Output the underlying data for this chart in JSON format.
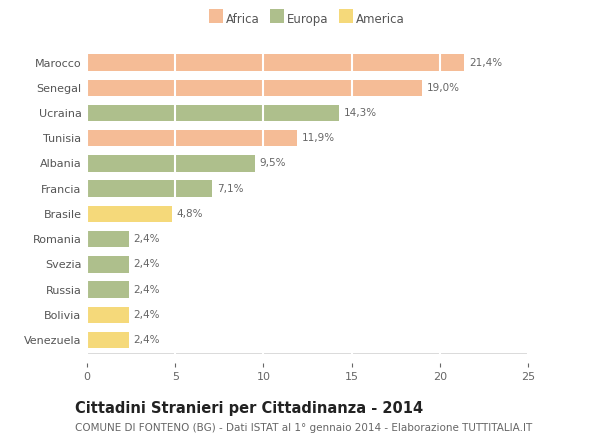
{
  "categories": [
    "Marocco",
    "Senegal",
    "Ucraina",
    "Tunisia",
    "Albania",
    "Francia",
    "Brasile",
    "Romania",
    "Svezia",
    "Russia",
    "Bolivia",
    "Venezuela"
  ],
  "values": [
    21.4,
    19.0,
    14.3,
    11.9,
    9.5,
    7.1,
    4.8,
    2.4,
    2.4,
    2.4,
    2.4,
    2.4
  ],
  "labels": [
    "21,4%",
    "19,0%",
    "14,3%",
    "11,9%",
    "9,5%",
    "7,1%",
    "4,8%",
    "2,4%",
    "2,4%",
    "2,4%",
    "2,4%",
    "2,4%"
  ],
  "colors": [
    "#F5BC96",
    "#F5BC96",
    "#AEBF8C",
    "#F5BC96",
    "#AEBF8C",
    "#AEBF8C",
    "#F5D97A",
    "#AEBF8C",
    "#AEBF8C",
    "#AEBF8C",
    "#F5D97A",
    "#F5D97A"
  ],
  "legend_labels": [
    "Africa",
    "Europa",
    "America"
  ],
  "legend_colors": [
    "#F5BC96",
    "#AEBF8C",
    "#F5D97A"
  ],
  "title": "Cittadini Stranieri per Cittadinanza - 2014",
  "subtitle": "COMUNE DI FONTENO (BG) - Dati ISTAT al 1° gennaio 2014 - Elaborazione TUTTITALIA.IT",
  "xlim": [
    0,
    25
  ],
  "xticks": [
    0,
    5,
    10,
    15,
    20,
    25
  ],
  "background_color": "#ffffff",
  "plot_bg_color": "#ffffff",
  "grid_color": "#ffffff",
  "bar_height": 0.65,
  "title_fontsize": 10.5,
  "subtitle_fontsize": 7.5,
  "label_fontsize": 7.5,
  "tick_fontsize": 8,
  "legend_fontsize": 8.5
}
